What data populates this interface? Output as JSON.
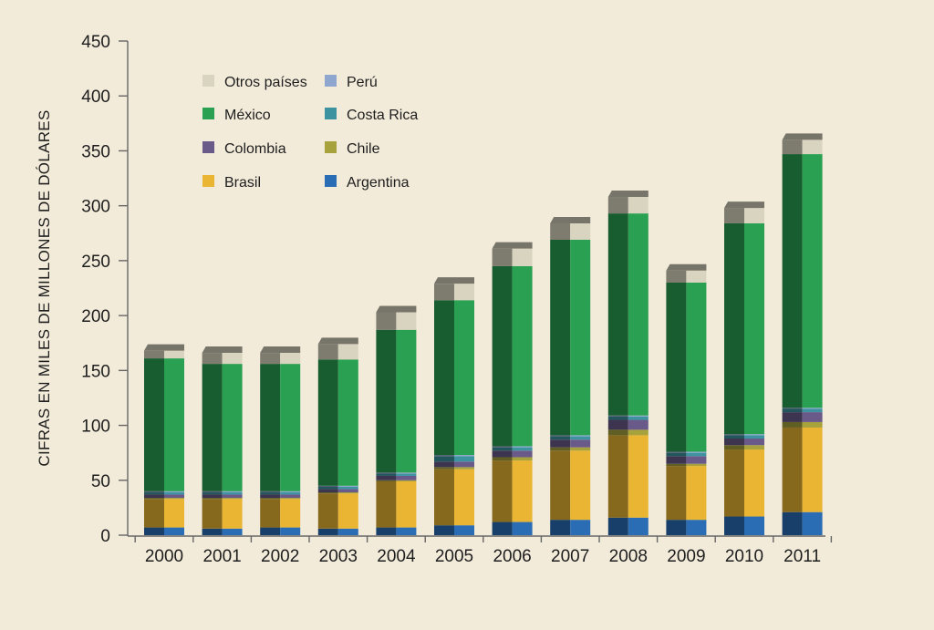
{
  "chart_data": {
    "type": "bar",
    "stacked": true,
    "title": "",
    "xlabel": "",
    "ylabel": "CIFRAS EN MILES DE MILLONES DE DÓLARES",
    "ylim": [
      0,
      450
    ],
    "yticks": [
      0,
      50,
      100,
      150,
      200,
      250,
      300,
      350,
      400,
      450
    ],
    "grid": false,
    "legend_position": "top-left",
    "categories": [
      "2000",
      "2001",
      "2002",
      "2003",
      "2004",
      "2005",
      "2006",
      "2007",
      "2008",
      "2009",
      "2010",
      "2011"
    ],
    "series": [
      {
        "name": "Argentina",
        "color": "#2a6db5",
        "values": [
          7,
          6,
          7,
          6,
          7,
          9,
          12,
          14,
          16,
          14,
          17,
          21
        ]
      },
      {
        "name": "Brasil",
        "color": "#e9b533",
        "values": [
          26,
          27,
          26,
          32,
          42,
          51,
          56,
          63,
          75,
          49,
          61,
          77
        ]
      },
      {
        "name": "Chile",
        "color": "#a7a23c",
        "values": [
          1,
          1,
          1,
          1,
          1,
          2,
          3,
          3,
          5,
          2,
          4,
          5
        ]
      },
      {
        "name": "Colombia",
        "color": "#6a5a8a",
        "values": [
          3,
          3,
          3,
          3,
          4,
          5,
          6,
          7,
          9,
          7,
          6,
          9
        ]
      },
      {
        "name": "Costa Rica",
        "color": "#3d93a0",
        "values": [
          2,
          2,
          2,
          2,
          2,
          5,
          3,
          3,
          3,
          3,
          3,
          3
        ]
      },
      {
        "name": "Perú",
        "color": "#8fa6cf",
        "values": [
          1,
          1,
          1,
          1,
          1,
          1,
          1,
          1,
          1,
          1,
          1,
          1
        ]
      },
      {
        "name": "México",
        "color": "#2aa152",
        "values": [
          121,
          116,
          116,
          115,
          130,
          141,
          164,
          178,
          184,
          154,
          192,
          231
        ]
      },
      {
        "name": "Otros países",
        "color": "#d9d4bf",
        "values": [
          7,
          10,
          10,
          14,
          16,
          15,
          16,
          15,
          15,
          11,
          14,
          13
        ]
      }
    ]
  }
}
